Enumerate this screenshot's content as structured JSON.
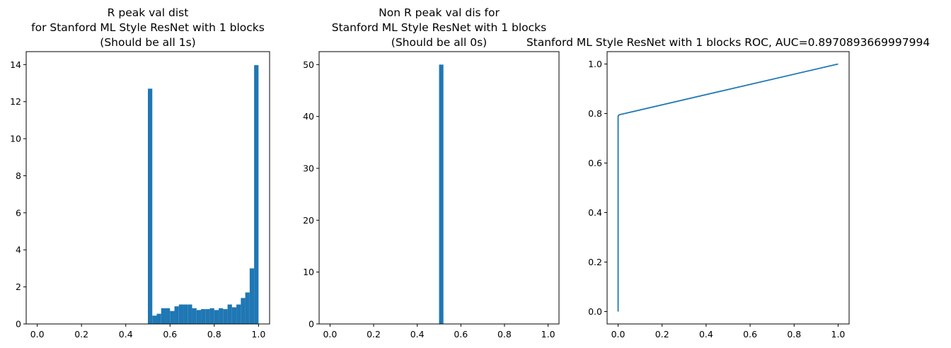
{
  "chart_data": [
    {
      "type": "histogram",
      "title": [
        "R peak val dist",
        "for Stanford ML Style ResNet with 1 blocks",
        "(Should be all 1s)"
      ],
      "color": "#1f77b4",
      "bins": [
        0,
        0.02,
        0.04,
        0.06,
        0.08,
        0.1,
        0.12,
        0.14,
        0.16,
        0.18,
        0.2,
        0.22,
        0.24,
        0.26,
        0.28,
        0.3,
        0.32,
        0.34,
        0.36,
        0.38,
        0.4,
        0.42,
        0.44,
        0.46,
        0.48,
        0.5,
        0.52,
        0.54,
        0.56,
        0.58,
        0.6,
        0.62,
        0.64,
        0.66,
        0.68,
        0.7,
        0.72,
        0.74,
        0.76,
        0.78,
        0.8,
        0.82,
        0.84,
        0.86,
        0.88,
        0.9,
        0.92,
        0.94,
        0.96,
        0.98,
        1
      ],
      "values": [
        0,
        0,
        0,
        0,
        0,
        0,
        0,
        0,
        0,
        0,
        0,
        0,
        0,
        0,
        0,
        0,
        0,
        0,
        0,
        0,
        0,
        0,
        0,
        0,
        0,
        12.7,
        0.45,
        0.55,
        0.85,
        0.85,
        0.7,
        0.95,
        1.05,
        1.05,
        1.05,
        0.85,
        0.75,
        0.8,
        0.8,
        0.85,
        0.75,
        0.85,
        0.8,
        1.05,
        0.9,
        1.05,
        1.4,
        1.7,
        3.0,
        13.97
      ],
      "xlim": [
        -0.05,
        1.05
      ],
      "xticks": [
        {
          "value": 0,
          "label": "0.0"
        },
        0.2,
        0.4,
        0.6,
        0.8,
        {
          "value": 1,
          "label": "1.0"
        }
      ],
      "ylim": [
        0,
        14.7
      ],
      "yticks": [
        0,
        2,
        4,
        6,
        8,
        10,
        12,
        14
      ]
    },
    {
      "type": "histogram",
      "title": [
        "Non R peak val dis for",
        "Stanford ML Style ResNet with 1 blocks",
        "(Should be all 0s)"
      ],
      "color": "#1f77b4",
      "bins": [
        0,
        0.02,
        0.04,
        0.06,
        0.08,
        0.1,
        0.12,
        0.14,
        0.16,
        0.18,
        0.2,
        0.22,
        0.24,
        0.26,
        0.28,
        0.3,
        0.32,
        0.34,
        0.36,
        0.38,
        0.4,
        0.42,
        0.44,
        0.46,
        0.48,
        0.5,
        0.52,
        0.54,
        0.56,
        0.58,
        0.6,
        0.62,
        0.64,
        0.66,
        0.68,
        0.7,
        0.72,
        0.74,
        0.76,
        0.78,
        0.8,
        0.82,
        0.84,
        0.86,
        0.88,
        0.9,
        0.92,
        0.94,
        0.96,
        0.98,
        1
      ],
      "values": [
        0,
        0,
        0,
        0,
        0,
        0,
        0,
        0,
        0,
        0,
        0,
        0,
        0,
        0,
        0,
        0,
        0,
        0,
        0,
        0,
        0,
        0,
        0,
        0,
        0,
        50,
        0,
        0,
        0,
        0,
        0,
        0,
        0,
        0,
        0,
        0,
        0,
        0,
        0,
        0,
        0,
        0,
        0,
        0,
        0,
        0,
        0,
        0,
        0,
        0
      ],
      "xlim": [
        -0.05,
        1.05
      ],
      "xticks": [
        {
          "value": 0,
          "label": "0.0"
        },
        0.2,
        0.4,
        0.6,
        0.8,
        {
          "value": 1,
          "label": "1.0"
        }
      ],
      "ylim": [
        0,
        52.5
      ],
      "yticks": [
        0,
        10,
        20,
        30,
        40,
        50
      ]
    },
    {
      "type": "line",
      "title": [
        "Stanford ML Style ResNet with 1 blocks ROC, AUC=0.8970893669997994"
      ],
      "color": "#1f77b4",
      "x": [
        0,
        0,
        0.005,
        1
      ],
      "values": [
        0,
        0.79,
        0.795,
        1
      ],
      "xlim": [
        -0.05,
        1.05
      ],
      "xticks": [
        {
          "value": 0,
          "label": "0.0"
        },
        0.2,
        0.4,
        0.6,
        0.8,
        {
          "value": 1,
          "label": "1.0"
        }
      ],
      "ylim": [
        -0.05,
        1.05
      ],
      "yticks": [
        {
          "value": 0,
          "label": "0.0"
        },
        0.2,
        0.4,
        0.6,
        0.8,
        {
          "value": 1,
          "label": "1.0"
        }
      ]
    }
  ]
}
